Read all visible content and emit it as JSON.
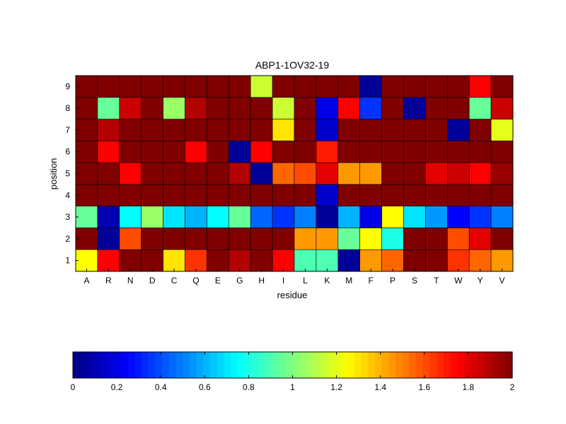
{
  "chart_data": [
    {
      "type": "heatmap",
      "title": "ABP1-1OV32-19",
      "xlabel": "residue",
      "ylabel": "position",
      "x_categories": [
        "A",
        "R",
        "N",
        "D",
        "C",
        "Q",
        "E",
        "G",
        "H",
        "I",
        "L",
        "K",
        "M",
        "F",
        "P",
        "S",
        "T",
        "W",
        "Y",
        "V"
      ],
      "y_categories": [
        "1",
        "2",
        "3",
        "4",
        "5",
        "6",
        "7",
        "8",
        "9"
      ],
      "value_range": [
        0,
        2
      ],
      "colormap": "jet",
      "grid": true,
      "rows": [
        {
          "position": "1",
          "values": [
            1.25,
            1.75,
            2.0,
            2.0,
            1.3,
            1.65,
            2.0,
            1.9,
            2.0,
            1.75,
            0.9,
            0.9,
            0.05,
            1.45,
            1.55,
            2.0,
            2.0,
            1.65,
            1.55,
            1.45
          ]
        },
        {
          "position": "2",
          "values": [
            2.0,
            0.05,
            1.6,
            2.0,
            2.0,
            2.0,
            2.0,
            2.0,
            2.0,
            2.0,
            1.45,
            1.45,
            0.95,
            1.25,
            0.8,
            2.0,
            2.0,
            1.6,
            1.8,
            2.0
          ]
        },
        {
          "position": "3",
          "values": [
            0.95,
            0.1,
            0.75,
            1.05,
            0.7,
            0.6,
            0.75,
            0.95,
            0.45,
            0.35,
            0.5,
            0.05,
            0.6,
            0.2,
            1.25,
            0.7,
            0.55,
            0.25,
            0.35,
            0.5
          ]
        },
        {
          "position": "4",
          "values": [
            2.0,
            2.0,
            2.0,
            2.0,
            2.0,
            2.0,
            2.0,
            2.0,
            2.0,
            2.0,
            2.0,
            0.15,
            2.0,
            2.0,
            2.0,
            2.0,
            2.0,
            2.0,
            2.0,
            2.0
          ]
        },
        {
          "position": "5",
          "values": [
            2.0,
            2.0,
            1.75,
            2.0,
            2.0,
            2.0,
            2.0,
            1.9,
            0.05,
            1.55,
            1.6,
            1.8,
            1.45,
            1.45,
            2.0,
            2.0,
            1.8,
            1.85,
            1.75,
            1.95
          ]
        },
        {
          "position": "6",
          "values": [
            2.0,
            1.75,
            2.0,
            2.0,
            2.0,
            1.75,
            2.0,
            0.05,
            1.75,
            2.0,
            2.0,
            1.7,
            2.0,
            2.0,
            2.0,
            2.0,
            2.0,
            2.0,
            2.0,
            2.0
          ]
        },
        {
          "position": "7",
          "values": [
            2.0,
            1.9,
            2.0,
            2.0,
            2.0,
            2.0,
            2.0,
            2.0,
            2.0,
            1.3,
            2.0,
            0.15,
            2.0,
            2.0,
            2.0,
            2.0,
            2.0,
            0.05,
            2.0,
            1.2
          ]
        },
        {
          "position": "8",
          "values": [
            2.0,
            0.95,
            1.85,
            2.0,
            1.05,
            1.9,
            2.0,
            2.0,
            2.0,
            1.15,
            2.0,
            0.2,
            1.75,
            0.35,
            2.0,
            0.05,
            2.0,
            2.0,
            0.95,
            1.85
          ]
        },
        {
          "position": "9",
          "values": [
            2.0,
            2.0,
            2.0,
            2.0,
            2.0,
            2.0,
            2.0,
            2.0,
            1.15,
            2.0,
            2.0,
            2.0,
            2.0,
            0.05,
            2.0,
            2.0,
            2.0,
            2.0,
            1.75,
            2.0
          ]
        }
      ]
    },
    {
      "type": "colorbar",
      "colormap": "jet",
      "range": [
        0,
        2
      ],
      "tick_values": [
        0,
        0.2,
        0.4,
        0.6,
        0.8,
        1,
        1.2,
        1.4,
        1.6,
        1.8,
        2
      ],
      "tick_labels": [
        "0",
        "0.2",
        "0.4",
        "0.6",
        "0.8",
        "1",
        "1.2",
        "1.4",
        "1.6",
        "1.8",
        "2"
      ]
    }
  ]
}
